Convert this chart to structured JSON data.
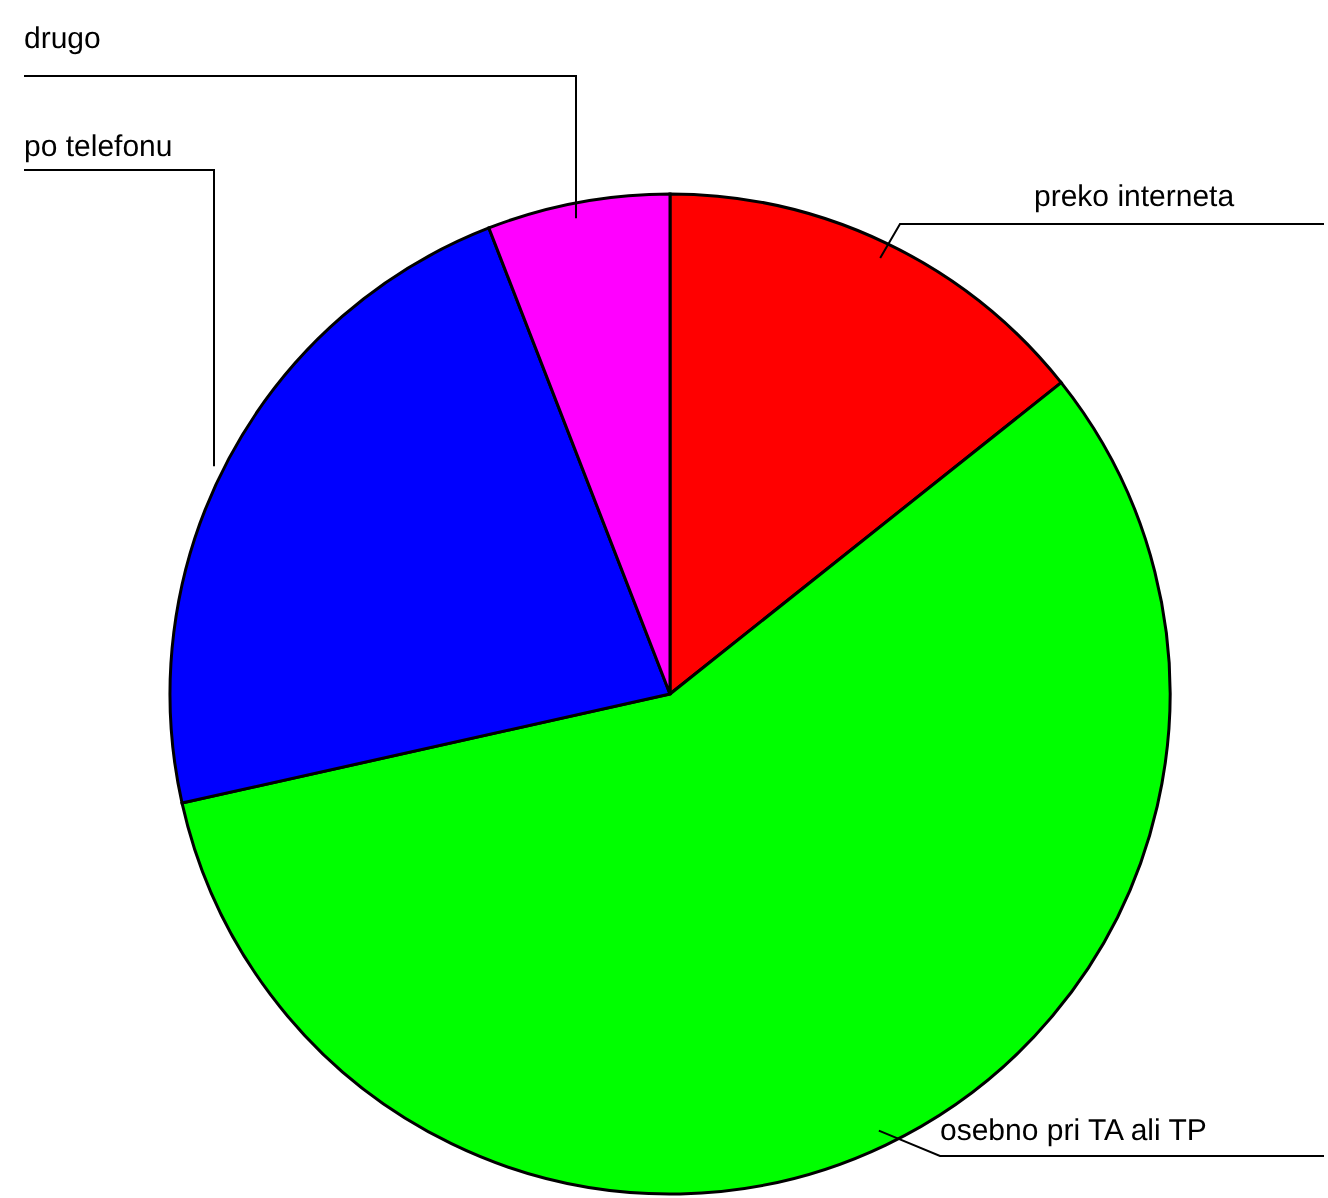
{
  "chart_data": {
    "type": "pie",
    "categories": [
      "preko interneta",
      "osebno pri TA ali TP",
      "po telefonu",
      "drugo"
    ],
    "values": [
      14.3,
      57.2,
      22.6,
      5.9
    ],
    "colors": [
      "#ff0000",
      "#00ff00",
      "#0000ff",
      "#ff00ff"
    ]
  }
}
